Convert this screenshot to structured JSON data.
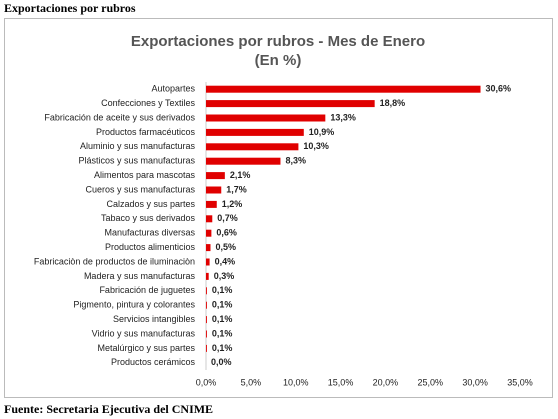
{
  "header": {
    "title": "Exportaciones por rubros"
  },
  "footer": {
    "source": "Fuente: Secretaria Ejecutiva del CNIME"
  },
  "chart_data": {
    "type": "bar",
    "orientation": "horizontal",
    "title": "Exportaciones por rubros - Mes de Enero",
    "subtitle": "(En %)",
    "categories": [
      "Autopartes",
      "Confecciones y Textiles",
      "Fabricación de aceite y sus derivados",
      "Productos farmacéuticos",
      "Aluminio y sus manufacturas",
      "Plásticos y sus manufacturas",
      "Alimentos para mascotas",
      "Cueros y sus manufacturas",
      "Calzados y sus partes",
      "Tabaco y sus derivados",
      "Manufacturas diversas",
      "Productos alimenticios",
      "Fabricaciòn de productos de iluminaciòn",
      "Madera y sus manufacturas",
      "Fabricación de juguetes",
      "Pigmento, pintura y colorantes",
      "Servicios intangibles",
      "Vidrio y sus manufacturas",
      "Metalúrgico y sus partes",
      "Productos cerámicos"
    ],
    "values": [
      30.6,
      18.8,
      13.3,
      10.9,
      10.3,
      8.3,
      2.1,
      1.7,
      1.2,
      0.7,
      0.6,
      0.5,
      0.4,
      0.3,
      0.1,
      0.1,
      0.1,
      0.1,
      0.1,
      0.0
    ],
    "value_labels": [
      "30,6%",
      "18,8%",
      "13,3%",
      "10,9%",
      "10,3%",
      "8,3%",
      "2,1%",
      "1,7%",
      "1,2%",
      "0,7%",
      "0,6%",
      "0,5%",
      "0,4%",
      "0,3%",
      "0,1%",
      "0,1%",
      "0,1%",
      "0,1%",
      "0,1%",
      "0,0%"
    ],
    "color": "#e00000",
    "xlim": [
      0,
      35
    ],
    "xticks": [
      {
        "value": 0,
        "label": "0,0%"
      },
      {
        "value": 5,
        "label": "5,0%"
      },
      {
        "value": 10,
        "label": "10,0%"
      },
      {
        "value": 15,
        "label": "15,0%"
      },
      {
        "value": 20,
        "label": "20,0%"
      },
      {
        "value": 25,
        "label": "25,0%"
      },
      {
        "value": 30,
        "label": "30,0%"
      },
      {
        "value": 35,
        "label": "35,0%"
      }
    ],
    "grid": false
  }
}
